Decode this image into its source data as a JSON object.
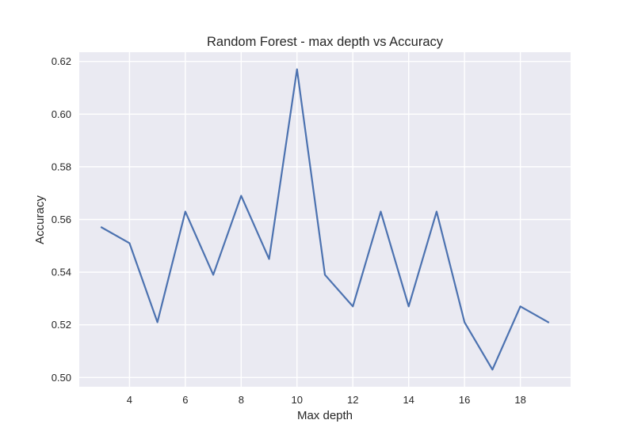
{
  "chart_data": {
    "type": "line",
    "title": "Random Forest - max depth vs Accuracy",
    "xlabel": "Max depth",
    "ylabel": "Accuracy",
    "x": [
      3,
      4,
      5,
      6,
      7,
      8,
      9,
      10,
      11,
      12,
      13,
      14,
      15,
      16,
      17,
      18,
      19
    ],
    "series": [
      {
        "values": [
          0.557,
          0.551,
          0.521,
          0.563,
          0.539,
          0.569,
          0.545,
          0.617,
          0.539,
          0.527,
          0.563,
          0.527,
          0.563,
          0.521,
          0.503,
          0.527,
          0.521
        ],
        "color": "#4c72b0"
      }
    ],
    "xlim": [
      2.2,
      19.8
    ],
    "ylim": [
      0.4965,
      0.6235
    ],
    "xticks": [
      4,
      6,
      8,
      10,
      12,
      14,
      16,
      18
    ],
    "xtick_labels": [
      "4",
      "6",
      "8",
      "10",
      "12",
      "14",
      "16",
      "18"
    ],
    "yticks": [
      0.5,
      0.52,
      0.54,
      0.56,
      0.58,
      0.6,
      0.62
    ],
    "ytick_labels": [
      "0.50",
      "0.52",
      "0.54",
      "0.56",
      "0.58",
      "0.60",
      "0.62"
    ],
    "grid": true,
    "plot_background": "#eaeaf2",
    "grid_color": "#ffffff",
    "legend": "none"
  }
}
